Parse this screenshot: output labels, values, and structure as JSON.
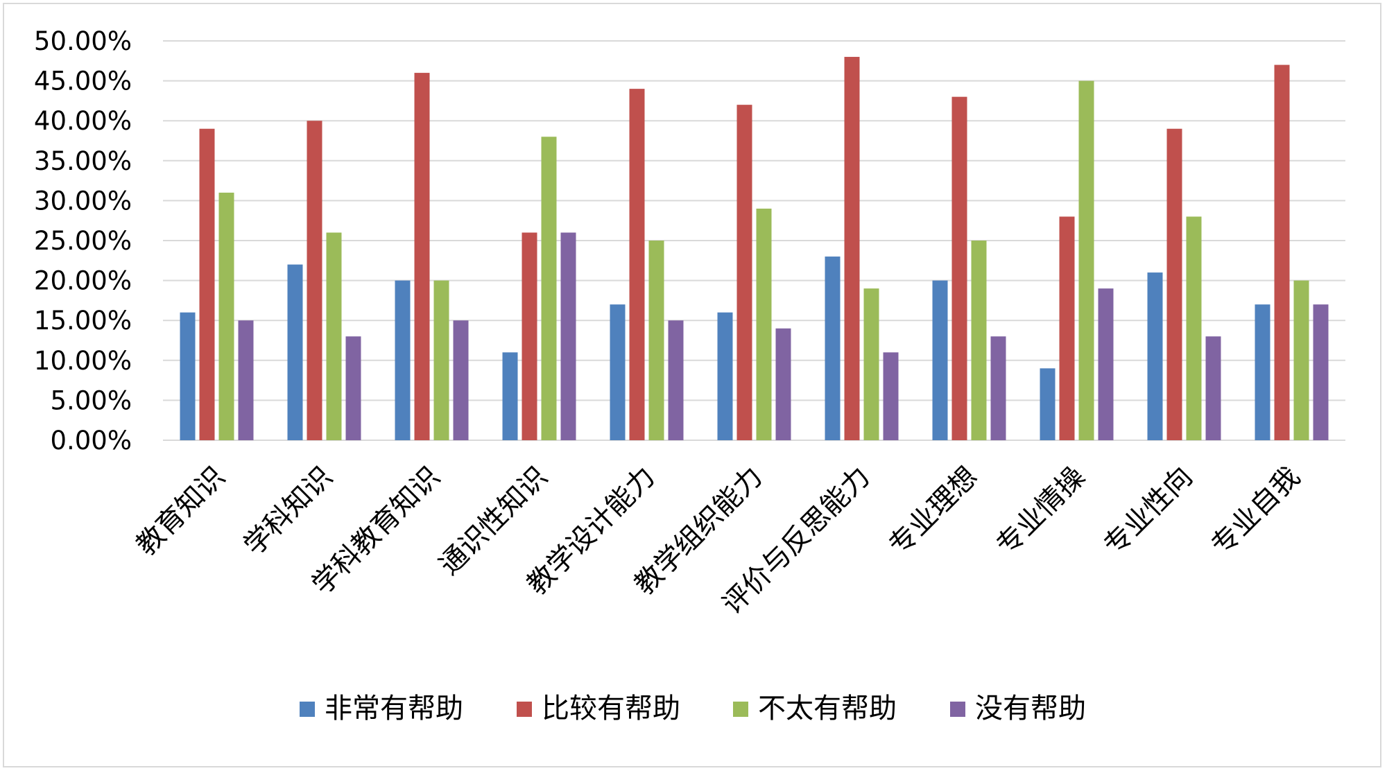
{
  "chart_data": {
    "type": "bar",
    "title": "",
    "xlabel": "",
    "ylabel": "",
    "ylim": [
      0,
      50
    ],
    "y_tick_values": [
      0,
      5,
      10,
      15,
      20,
      25,
      30,
      35,
      40,
      45,
      50
    ],
    "y_tick_labels": [
      "0.00%",
      "5.00%",
      "10.00%",
      "15.00%",
      "20.00%",
      "25.00%",
      "30.00%",
      "35.00%",
      "40.00%",
      "45.00%",
      "50.00%"
    ],
    "grid": true,
    "legend_position": "bottom",
    "categories": [
      "教育知识",
      "学科知识",
      "学科教育知识",
      "通识性知识",
      "教学设计能力",
      "教学组织能力",
      "评价与反思能力",
      "专业理想",
      "专业情操",
      "专业性向",
      "专业自我"
    ],
    "series": [
      {
        "name": "非常有帮助",
        "color": "#4f81bd",
        "values": [
          16,
          22,
          20,
          11,
          17,
          16,
          23,
          20,
          9,
          21,
          17
        ]
      },
      {
        "name": "比较有帮助",
        "color": "#c0504d",
        "values": [
          39,
          40,
          46,
          26,
          44,
          42,
          48,
          43,
          28,
          39,
          47
        ]
      },
      {
        "name": "不太有帮助",
        "color": "#9bbb59",
        "values": [
          31,
          26,
          20,
          38,
          25,
          29,
          19,
          25,
          45,
          28,
          20
        ]
      },
      {
        "name": "没有帮助",
        "color": "#8064a2",
        "values": [
          15,
          13,
          15,
          26,
          15,
          14,
          11,
          13,
          19,
          13,
          17
        ]
      }
    ],
    "gridline_color": "#d9d9d9"
  }
}
